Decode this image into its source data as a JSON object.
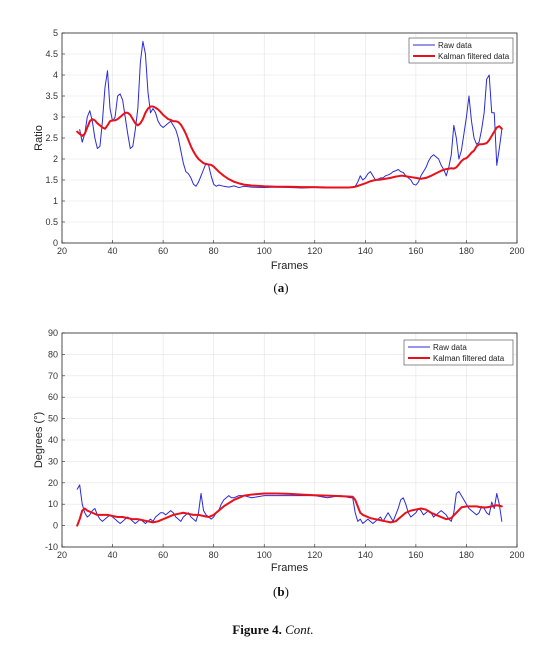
{
  "figure": {
    "caption_label": "Figure 4.",
    "caption_text": "Cont."
  },
  "chart_data": [
    {
      "type": "line",
      "sublabel": "a",
      "xlabel": "Frames",
      "ylabel": "Ratio",
      "xlim": [
        20,
        200
      ],
      "ylim": [
        0,
        5
      ],
      "xticks": [
        20,
        40,
        60,
        80,
        100,
        120,
        140,
        160,
        180,
        200
      ],
      "yticks": [
        0,
        0.5,
        1,
        1.5,
        2,
        2.5,
        3,
        3.5,
        4,
        4.5,
        5
      ],
      "grid": true,
      "legend_position": "top-right",
      "series": [
        {
          "name": "Raw data",
          "color": "#2b2bd6",
          "x": [
            27,
            28,
            29,
            30,
            31,
            32,
            33,
            34,
            35,
            36,
            37,
            38,
            39,
            40,
            41,
            42,
            43,
            44,
            45,
            46,
            47,
            48,
            49,
            50,
            51,
            52,
            53,
            54,
            55,
            56,
            57,
            58,
            59,
            60,
            61,
            62,
            63,
            64,
            65,
            66,
            67,
            68,
            69,
            70,
            71,
            72,
            73,
            74,
            75,
            76,
            77,
            78,
            79,
            80,
            81,
            82,
            84,
            86,
            88,
            90,
            92,
            95,
            100,
            105,
            110,
            115,
            120,
            125,
            130,
            135,
            136,
            137,
            138,
            139,
            140,
            141,
            142,
            143,
            144,
            145,
            146,
            147,
            148,
            149,
            150,
            151,
            152,
            153,
            154,
            155,
            156,
            157,
            158,
            159,
            160,
            161,
            162,
            163,
            164,
            165,
            166,
            167,
            168,
            169,
            170,
            171,
            172,
            173,
            174,
            175,
            176,
            177,
            178,
            179,
            180,
            181,
            182,
            183,
            184,
            185,
            186,
            187,
            188,
            189,
            190,
            191,
            192,
            193,
            194
          ],
          "y": [
            2.7,
            2.4,
            2.6,
            3.0,
            3.15,
            2.9,
            2.5,
            2.25,
            2.3,
            2.9,
            3.7,
            4.1,
            3.2,
            2.9,
            3.0,
            3.5,
            3.55,
            3.4,
            3.0,
            2.6,
            2.25,
            2.3,
            2.7,
            3.2,
            4.3,
            4.8,
            4.5,
            3.6,
            3.1,
            3.2,
            3.1,
            2.9,
            2.8,
            2.75,
            2.8,
            2.85,
            2.9,
            2.8,
            2.7,
            2.5,
            2.2,
            1.9,
            1.7,
            1.65,
            1.55,
            1.4,
            1.35,
            1.45,
            1.6,
            1.75,
            1.9,
            1.85,
            1.6,
            1.4,
            1.35,
            1.38,
            1.35,
            1.33,
            1.36,
            1.32,
            1.35,
            1.33,
            1.32,
            1.33,
            1.32,
            1.31,
            1.32,
            1.31,
            1.31,
            1.32,
            1.35,
            1.45,
            1.6,
            1.5,
            1.55,
            1.65,
            1.7,
            1.6,
            1.5,
            1.52,
            1.55,
            1.55,
            1.6,
            1.62,
            1.65,
            1.7,
            1.72,
            1.75,
            1.7,
            1.68,
            1.6,
            1.55,
            1.5,
            1.4,
            1.38,
            1.45,
            1.6,
            1.7,
            1.8,
            1.95,
            2.05,
            2.1,
            2.05,
            2.0,
            1.85,
            1.75,
            1.6,
            1.8,
            2.1,
            2.8,
            2.5,
            2.0,
            2.2,
            2.6,
            3.0,
            3.5,
            2.9,
            2.5,
            2.35,
            2.4,
            2.7,
            3.1,
            3.9,
            4.0,
            3.1,
            3.1,
            1.85,
            2.25,
            2.7
          ]
        },
        {
          "name": "Kalman filtered data",
          "color": "#e8111a",
          "x": [
            26,
            27,
            28,
            29,
            30,
            31,
            32,
            33,
            34,
            35,
            36,
            37,
            38,
            39,
            40,
            41,
            42,
            43,
            44,
            45,
            46,
            47,
            48,
            49,
            50,
            51,
            52,
            53,
            54,
            55,
            56,
            57,
            58,
            59,
            60,
            61,
            62,
            63,
            64,
            65,
            66,
            67,
            68,
            69,
            70,
            71,
            72,
            73,
            74,
            75,
            76,
            77,
            78,
            79,
            80,
            81,
            82,
            84,
            86,
            88,
            90,
            92,
            95,
            100,
            105,
            110,
            115,
            120,
            125,
            130,
            133,
            135,
            136,
            137,
            138,
            140,
            142,
            144,
            146,
            148,
            150,
            152,
            154,
            155,
            156,
            158,
            160,
            162,
            164,
            166,
            168,
            170,
            172,
            174,
            175,
            176,
            177,
            178,
            179,
            180,
            181,
            182,
            183,
            184,
            185,
            186,
            187,
            188,
            189,
            190,
            191,
            192,
            193,
            194
          ],
          "y": [
            2.65,
            2.6,
            2.55,
            2.6,
            2.75,
            2.9,
            2.95,
            2.92,
            2.85,
            2.8,
            2.75,
            2.72,
            2.8,
            2.9,
            2.92,
            2.92,
            2.95,
            3.0,
            3.05,
            3.1,
            3.1,
            3.05,
            2.95,
            2.85,
            2.8,
            2.85,
            2.95,
            3.1,
            3.2,
            3.25,
            3.25,
            3.22,
            3.18,
            3.12,
            3.05,
            3.0,
            2.95,
            2.93,
            2.9,
            2.9,
            2.88,
            2.82,
            2.72,
            2.6,
            2.45,
            2.3,
            2.18,
            2.08,
            2.0,
            1.95,
            1.9,
            1.88,
            1.87,
            1.86,
            1.82,
            1.76,
            1.7,
            1.6,
            1.52,
            1.46,
            1.42,
            1.39,
            1.37,
            1.35,
            1.34,
            1.34,
            1.33,
            1.33,
            1.32,
            1.32,
            1.32,
            1.33,
            1.34,
            1.36,
            1.38,
            1.42,
            1.47,
            1.5,
            1.51,
            1.53,
            1.55,
            1.58,
            1.6,
            1.6,
            1.59,
            1.57,
            1.55,
            1.53,
            1.55,
            1.6,
            1.66,
            1.72,
            1.76,
            1.78,
            1.77,
            1.8,
            1.87,
            1.95,
            2.0,
            2.02,
            2.08,
            2.15,
            2.2,
            2.3,
            2.35,
            2.35,
            2.36,
            2.38,
            2.45,
            2.55,
            2.65,
            2.75,
            2.78,
            2.72
          ]
        }
      ]
    },
    {
      "type": "line",
      "sublabel": "b",
      "xlabel": "Frames",
      "ylabel": "Degrees (°)",
      "xlim": [
        20,
        200
      ],
      "ylim": [
        -10,
        90
      ],
      "xticks": [
        20,
        40,
        60,
        80,
        100,
        120,
        140,
        160,
        180,
        200
      ],
      "yticks": [
        -10,
        0,
        10,
        20,
        30,
        40,
        50,
        60,
        70,
        80,
        90
      ],
      "grid": true,
      "legend_position": "top-right",
      "series": [
        {
          "name": "Raw data",
          "color": "#2b2bd6",
          "x": [
            26,
            27,
            28,
            29,
            30,
            31,
            32,
            33,
            34,
            35,
            36,
            37,
            38,
            39,
            40,
            41,
            42,
            43,
            44,
            45,
            46,
            47,
            48,
            49,
            50,
            51,
            52,
            53,
            54,
            55,
            56,
            57,
            58,
            59,
            60,
            61,
            62,
            63,
            64,
            65,
            66,
            67,
            68,
            69,
            70,
            71,
            72,
            73,
            74,
            75,
            76,
            77,
            78,
            79,
            80,
            81,
            82,
            83,
            84,
            85,
            86,
            87,
            88,
            90,
            92,
            95,
            100,
            105,
            110,
            115,
            120,
            125,
            130,
            134,
            135,
            136,
            137,
            138,
            139,
            140,
            141,
            142,
            143,
            144,
            145,
            146,
            147,
            148,
            149,
            150,
            151,
            152,
            153,
            154,
            155,
            156,
            157,
            158,
            159,
            160,
            161,
            162,
            163,
            164,
            165,
            166,
            167,
            168,
            169,
            170,
            171,
            172,
            173,
            174,
            175,
            176,
            177,
            178,
            179,
            180,
            181,
            182,
            183,
            184,
            185,
            186,
            187,
            188,
            189,
            190,
            191,
            192,
            193,
            194
          ],
          "y": [
            17,
            19,
            10,
            6,
            4,
            5,
            7,
            8,
            5,
            3,
            2,
            3,
            4,
            5,
            4,
            3,
            2,
            1,
            2,
            3,
            4,
            3,
            2,
            1,
            2,
            3,
            2,
            1,
            2,
            3,
            2,
            4,
            5,
            6,
            6,
            5,
            6,
            7,
            6,
            4,
            3,
            2,
            4,
            5,
            6,
            4,
            3,
            2,
            6,
            15,
            7,
            5,
            4,
            3,
            4,
            6,
            7,
            10,
            12,
            13,
            14,
            13,
            13,
            14,
            14,
            13,
            14,
            14,
            14,
            14,
            14,
            13,
            14,
            13,
            13,
            6,
            2,
            3,
            1,
            2,
            3,
            2,
            1,
            2,
            3,
            4,
            2,
            4,
            6,
            4,
            2,
            5,
            8,
            12,
            13,
            10,
            6,
            4,
            5,
            6,
            8,
            7,
            5,
            6,
            7,
            6,
            4,
            5,
            6,
            7,
            6,
            5,
            3,
            2,
            6,
            15,
            16,
            14,
            12,
            10,
            8,
            7,
            6,
            5,
            6,
            9,
            8,
            6,
            5,
            11,
            8,
            15,
            10,
            2
          ]
        },
        {
          "name": "Kalman filtered data",
          "color": "#e8111a",
          "x": [
            26,
            27,
            28,
            29,
            30,
            32,
            34,
            36,
            38,
            40,
            42,
            44,
            46,
            48,
            50,
            52,
            54,
            56,
            58,
            60,
            62,
            64,
            66,
            68,
            70,
            72,
            74,
            76,
            78,
            80,
            82,
            84,
            86,
            88,
            90,
            92,
            95,
            100,
            105,
            110,
            115,
            120,
            125,
            130,
            133,
            135,
            136,
            137,
            138,
            139,
            140,
            142,
            144,
            146,
            148,
            150,
            152,
            154,
            156,
            158,
            160,
            162,
            164,
            166,
            168,
            170,
            172,
            174,
            176,
            178,
            180,
            182,
            184,
            186,
            188,
            190,
            192,
            194
          ],
          "y": [
            0,
            3,
            7,
            8,
            7,
            6,
            5,
            5,
            5,
            4.5,
            4,
            4,
            3.5,
            3,
            3,
            2.5,
            2,
            1.5,
            2,
            3,
            4,
            5,
            5.5,
            6,
            5.5,
            5,
            5,
            4.5,
            4,
            5,
            7,
            9,
            10.5,
            12,
            13,
            14,
            14.5,
            15,
            15,
            14.8,
            14.5,
            14.2,
            14,
            13.8,
            13.6,
            13.5,
            12,
            9,
            6,
            5,
            4.5,
            3.5,
            3,
            2.5,
            2,
            1.5,
            2,
            4,
            6,
            7,
            7.5,
            8,
            7.5,
            6,
            5,
            4,
            3,
            3.5,
            6,
            8.5,
            9,
            9,
            9,
            8.5,
            8.5,
            9,
            9.5,
            9
          ]
        }
      ]
    }
  ]
}
